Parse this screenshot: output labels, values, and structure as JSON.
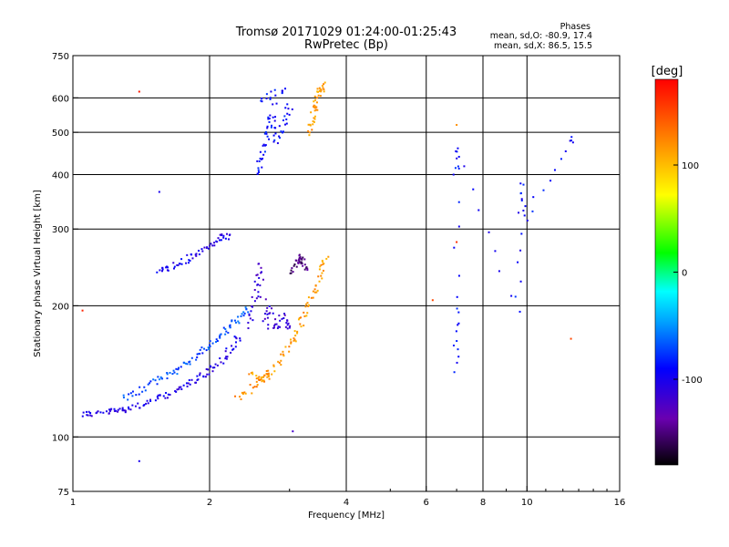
{
  "header": {
    "title_line1": "Tromsø 20171029 01:24:00-01:25:43",
    "title_line2": "RwPretec (Bp)",
    "phases_label": "Phases",
    "stat_o": "mean, sd,O: -80.9, 17.4",
    "stat_x": "mean, sd,X:  86.5, 15.5"
  },
  "colorbar": {
    "unit_label": "[deg]",
    "ticks": [
      "100",
      "0",
      "-100"
    ],
    "tick_values": [
      100,
      0,
      -100
    ],
    "range": [
      -180,
      180
    ]
  },
  "chart_data": {
    "type": "scatter",
    "title": "Tromsø 20171029 01:24:00-01:25:43",
    "subtitle": "RwPretec (Bp)",
    "xlabel": "Frequency [MHz]",
    "ylabel": "Stationary phase Virtual Height [km]",
    "xscale": "log",
    "yscale": "log",
    "xlim": [
      1,
      16
    ],
    "ylim": [
      75,
      750
    ],
    "xticks": [
      1,
      2,
      4,
      6,
      8,
      10,
      16
    ],
    "yticks": [
      75,
      100,
      200,
      300,
      400,
      500,
      600,
      750
    ],
    "x_gridlines": [
      2,
      4,
      6,
      8,
      10
    ],
    "y_gridlines": [
      100,
      200,
      300,
      400,
      500,
      600
    ],
    "color_encoding": "phase [deg]",
    "traces": [
      {
        "points": [
          [
            1.05,
            113
          ],
          [
            1.1,
            113
          ],
          [
            1.2,
            114
          ],
          [
            1.25,
            115
          ],
          [
            1.3,
            116
          ],
          [
            1.4,
            118
          ],
          [
            1.5,
            121
          ],
          [
            1.6,
            124
          ],
          [
            1.7,
            128
          ],
          [
            1.8,
            133
          ],
          [
            1.9,
            137
          ],
          [
            2.0,
            142
          ],
          [
            2.1,
            148
          ],
          [
            2.2,
            156
          ],
          [
            2.3,
            168
          ]
        ],
        "phase": -105
      },
      {
        "points": [
          [
            1.3,
            122
          ],
          [
            1.4,
            127
          ],
          [
            1.5,
            133
          ],
          [
            1.6,
            138
          ],
          [
            1.7,
            143
          ],
          [
            1.8,
            149
          ],
          [
            1.9,
            155
          ],
          [
            2.0,
            162
          ],
          [
            2.1,
            170
          ],
          [
            2.2,
            178
          ],
          [
            2.3,
            186
          ],
          [
            2.4,
            196
          ]
        ],
        "phase": -70
      },
      {
        "points": [
          [
            1.55,
            240
          ],
          [
            1.6,
            243
          ],
          [
            1.7,
            248
          ],
          [
            1.8,
            256
          ],
          [
            1.9,
            264
          ],
          [
            2.0,
            275
          ],
          [
            2.1,
            285
          ],
          [
            2.2,
            288
          ]
        ],
        "phase": -100
      },
      {
        "points": [
          [
            2.45,
            180
          ],
          [
            2.5,
            200
          ],
          [
            2.55,
            225
          ],
          [
            2.6,
            250
          ],
          [
            2.65,
            180
          ],
          [
            2.7,
            200
          ],
          [
            2.8,
            175
          ],
          [
            2.9,
            190
          ],
          [
            3.0,
            180
          ]
        ],
        "phase": -115
      },
      {
        "points": [
          [
            2.45,
            140
          ],
          [
            2.55,
            135
          ],
          [
            2.7,
            138
          ],
          [
            2.85,
            150
          ],
          [
            3.0,
            162
          ],
          [
            3.1,
            172
          ],
          [
            3.2,
            185
          ],
          [
            3.3,
            200
          ],
          [
            3.4,
            215
          ],
          [
            3.5,
            235
          ],
          [
            3.6,
            255
          ]
        ],
        "phase": 115
      },
      {
        "points": [
          [
            2.3,
            122
          ],
          [
            2.45,
            128
          ],
          [
            2.6,
            135
          ],
          [
            2.7,
            140
          ]
        ],
        "phase": 120
      },
      {
        "points": [
          [
            3.05,
            240
          ],
          [
            3.1,
            250
          ],
          [
            3.15,
            260
          ],
          [
            3.2,
            255
          ],
          [
            3.25,
            245
          ]
        ],
        "phase": -150
      },
      {
        "points": [
          [
            2.55,
            400
          ],
          [
            2.6,
            430
          ],
          [
            2.65,
            470
          ],
          [
            2.7,
            510
          ],
          [
            2.75,
            550
          ],
          [
            2.8,
            470
          ],
          [
            2.9,
            520
          ],
          [
            3.0,
            570
          ],
          [
            2.6,
            600
          ],
          [
            2.9,
            620
          ]
        ],
        "phase": -90
      },
      {
        "points": [
          [
            3.3,
            500
          ],
          [
            3.35,
            530
          ],
          [
            3.4,
            560
          ],
          [
            3.45,
            590
          ],
          [
            3.5,
            620
          ],
          [
            3.55,
            640
          ]
        ],
        "phase": 115
      },
      {
        "points": [
          [
            7.0,
            200
          ],
          [
            7.0,
            140
          ],
          [
            7.0,
            400
          ],
          [
            7.0,
            460
          ],
          [
            9.5,
            192
          ],
          [
            9.8,
            385
          ],
          [
            9.9,
            316
          ],
          [
            12.5,
            480
          ]
        ],
        "phase": -90
      }
    ],
    "isolated_points": [
      {
        "x": 1.4,
        "y": 620,
        "phase": 170
      },
      {
        "x": 1.55,
        "y": 365,
        "phase": -100
      },
      {
        "x": 7.0,
        "y": 520,
        "phase": 120
      },
      {
        "x": 7.0,
        "y": 280,
        "phase": 160
      },
      {
        "x": 6.2,
        "y": 206,
        "phase": 150
      },
      {
        "x": 12.5,
        "y": 168,
        "phase": 150
      },
      {
        "x": 3.05,
        "y": 103,
        "phase": -120
      },
      {
        "x": 1.4,
        "y": 88,
        "phase": -100
      },
      {
        "x": 1.05,
        "y": 195,
        "phase": 165
      }
    ]
  }
}
